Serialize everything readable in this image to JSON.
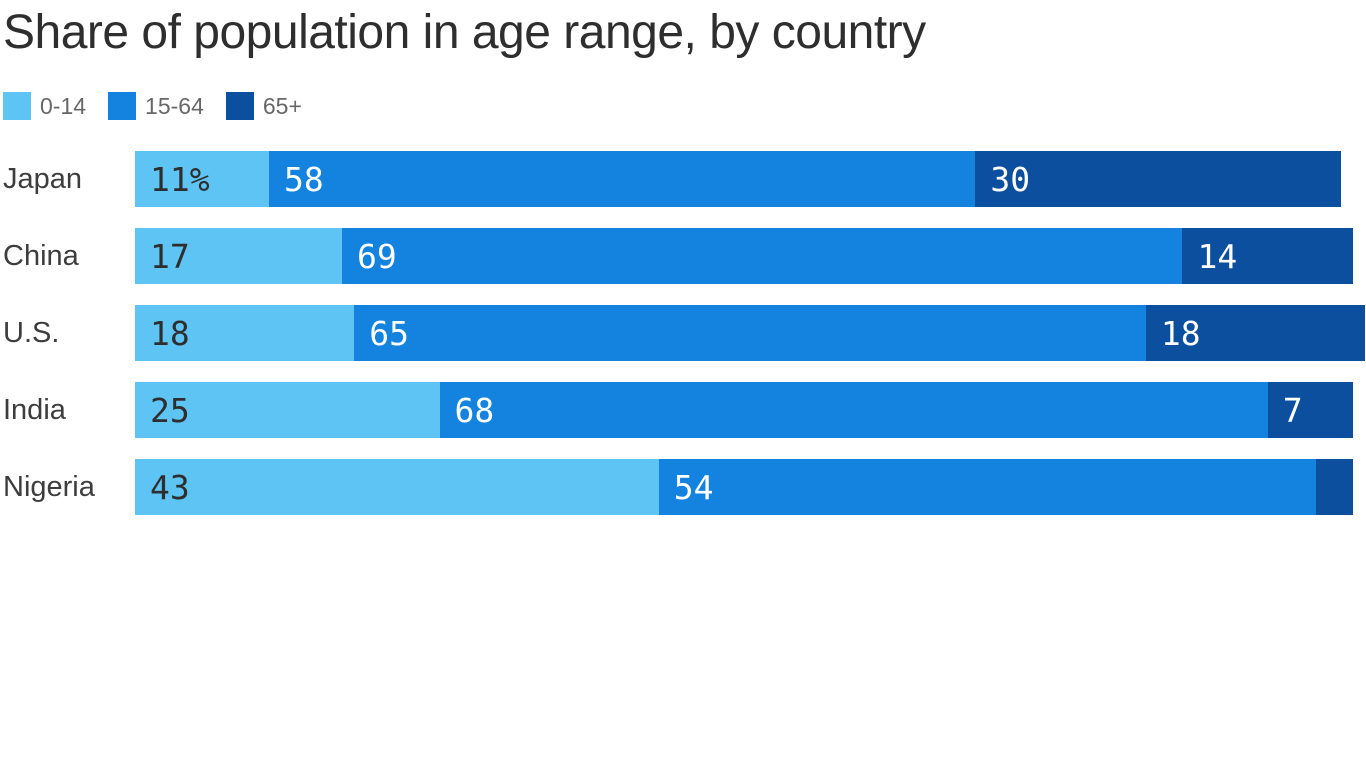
{
  "title": "Share of population in age range, by country",
  "legend": [
    {
      "label": "0-14",
      "color": "#5ec4f4"
    },
    {
      "label": "15-64",
      "color": "#1482df"
    },
    {
      "label": "65+",
      "color": "#0c4f9e"
    }
  ],
  "colors": {
    "light_blue": "#5ec4f4",
    "medium_blue": "#1482df",
    "dark_blue": "#0c4f9e",
    "title_text": "#2e2e2e",
    "country_text": "#3d3d3d",
    "legend_text": "#676767",
    "label_on_light": "#2e2e2e",
    "label_on_dark": "#ffffff"
  },
  "chart_data": {
    "type": "bar",
    "orientation": "horizontal",
    "stacked": true,
    "unit": "percent of population",
    "title": "Share of population in age range, by country",
    "xlabel": "",
    "ylabel": "",
    "axis_ticks": "none (values labeled inside segments)",
    "legend_position": "top-left",
    "grid": false,
    "categories": [
      "Japan",
      "China",
      "U.S.",
      "India",
      "Nigeria"
    ],
    "series": [
      {
        "name": "0-14",
        "color": "#5ec4f4",
        "label_color": "#2e2e2e",
        "values": [
          11,
          17,
          18,
          25,
          43
        ],
        "labels": [
          "11%",
          "17",
          "18",
          "25",
          "43"
        ]
      },
      {
        "name": "15-64",
        "color": "#1482df",
        "label_color": "#ffffff",
        "values": [
          58,
          69,
          65,
          68,
          54
        ],
        "labels": [
          "58",
          "69",
          "65",
          "68",
          "54"
        ]
      },
      {
        "name": "65+",
        "color": "#0c4f9e",
        "label_color": "#ffffff",
        "values": [
          30,
          14,
          18,
          7,
          3
        ],
        "labels": [
          "30",
          "14",
          "18",
          "7",
          ""
        ]
      }
    ]
  }
}
